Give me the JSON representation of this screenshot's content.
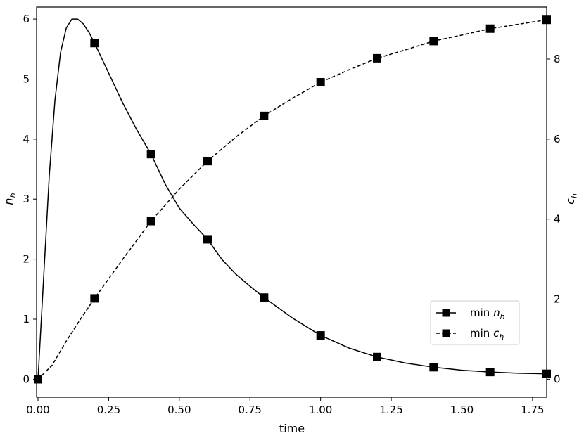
{
  "chart_data": {
    "type": "line",
    "xlabel": "time",
    "ylabel_left": "n",
    "ylabel_left_sub": "h",
    "ylabel_right": "c",
    "ylabel_right_sub": "h",
    "xlim": [
      -0.005,
      1.8
    ],
    "ylim_left": [
      -0.3,
      6.2
    ],
    "ylim_right": [
      -0.45,
      9.3
    ],
    "x_ticks": [
      0.0,
      0.25,
      0.5,
      0.75,
      1.0,
      1.25,
      1.5,
      1.75
    ],
    "x_tick_labels": [
      "0.00",
      "0.25",
      "0.50",
      "0.75",
      "1.00",
      "1.25",
      "1.50",
      "1.75"
    ],
    "y_left_ticks": [
      0,
      1,
      2,
      3,
      4,
      5,
      6
    ],
    "y_left_tick_labels": [
      "0",
      "1",
      "2",
      "3",
      "4",
      "5",
      "6"
    ],
    "y_right_ticks": [
      0,
      2,
      4,
      6,
      8
    ],
    "y_right_tick_labels": [
      "0",
      "2",
      "4",
      "6",
      "8"
    ],
    "grid": false,
    "legend_position": "center-right",
    "series": [
      {
        "name": "min",
        "name_sub": "h",
        "name_var": "n",
        "axis": "left",
        "line_style": "solid",
        "color": "#000000",
        "x": [
          0.0,
          0.02,
          0.04,
          0.06,
          0.08,
          0.1,
          0.12,
          0.14,
          0.16,
          0.18,
          0.2,
          0.25,
          0.3,
          0.35,
          0.4,
          0.45,
          0.5,
          0.55,
          0.6,
          0.65,
          0.7,
          0.75,
          0.8,
          0.9,
          1.0,
          1.1,
          1.2,
          1.3,
          1.4,
          1.5,
          1.6,
          1.7,
          1.8
        ],
        "values": [
          0.0,
          1.7,
          3.4,
          4.65,
          5.45,
          5.85,
          6.0,
          6.0,
          5.92,
          5.78,
          5.6,
          5.1,
          4.6,
          4.15,
          3.75,
          3.25,
          2.85,
          2.58,
          2.33,
          2.0,
          1.75,
          1.55,
          1.36,
          1.02,
          0.73,
          0.52,
          0.37,
          0.27,
          0.2,
          0.15,
          0.12,
          0.1,
          0.09
        ],
        "marker_x": [
          0.0,
          0.2,
          0.4,
          0.6,
          0.8,
          1.0,
          1.2,
          1.4,
          1.6,
          1.8
        ],
        "marker_values": [
          0.0,
          5.6,
          3.75,
          2.33,
          1.36,
          0.73,
          0.37,
          0.2,
          0.12,
          0.09
        ]
      },
      {
        "name": "min",
        "name_sub": "h",
        "name_var": "c",
        "axis": "right",
        "line_style": "dashed",
        "color": "#000000",
        "x": [
          0.0,
          0.05,
          0.1,
          0.15,
          0.2,
          0.3,
          0.4,
          0.5,
          0.6,
          0.7,
          0.8,
          0.9,
          1.0,
          1.1,
          1.2,
          1.3,
          1.4,
          1.5,
          1.6,
          1.7,
          1.8
        ],
        "values": [
          0.0,
          0.35,
          0.95,
          1.5,
          2.02,
          3.0,
          3.95,
          4.75,
          5.45,
          6.05,
          6.58,
          7.02,
          7.42,
          7.73,
          8.02,
          8.23,
          8.45,
          8.6,
          8.76,
          8.87,
          8.98
        ],
        "marker_x": [
          0.0,
          0.2,
          0.4,
          0.6,
          0.8,
          1.0,
          1.2,
          1.4,
          1.6,
          1.8
        ],
        "marker_values": [
          0.0,
          2.02,
          3.95,
          5.45,
          6.58,
          7.42,
          8.02,
          8.45,
          8.76,
          8.98
        ]
      }
    ]
  }
}
